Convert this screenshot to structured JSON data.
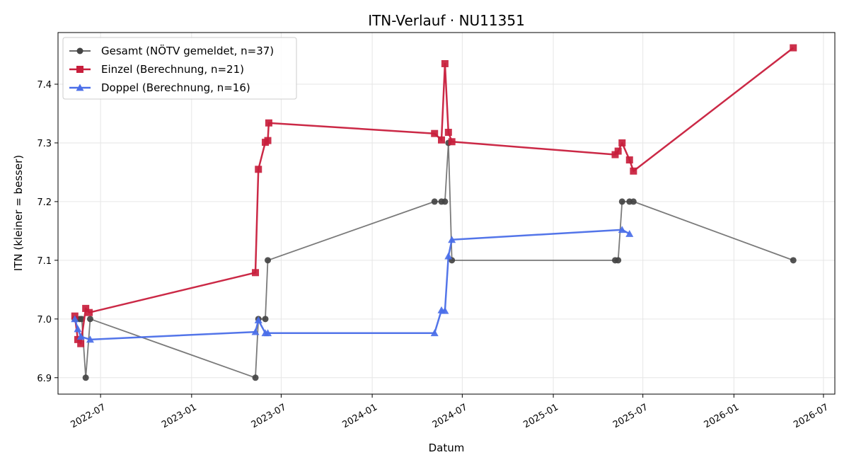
{
  "chart_data": {
    "type": "line",
    "title": "ITN-Verlauf · NU11351",
    "xlabel": "Datum",
    "ylabel": "ITN  (kleiner = besser)",
    "xlim": [
      "2022-04-06",
      "2026-07-24"
    ],
    "ylim": [
      6.872,
      7.488
    ],
    "x_ticks": [
      "2022-07",
      "2023-01",
      "2023-07",
      "2024-01",
      "2024-07",
      "2025-01",
      "2025-07",
      "2026-01",
      "2026-07"
    ],
    "y_ticks": [
      6.9,
      7.0,
      7.1,
      7.2,
      7.3,
      7.4
    ],
    "grid": true,
    "legend_position": "top-left",
    "series": [
      {
        "name": "Gesamt (NÖTV gemeldet, n=37)",
        "color": "#555555",
        "marker": "circle",
        "points": [
          [
            "2022-05-10",
            7.0
          ],
          [
            "2022-05-14",
            7.0
          ],
          [
            "2022-05-20",
            7.0
          ],
          [
            "2022-05-24",
            7.0
          ],
          [
            "2022-06-01",
            6.9
          ],
          [
            "2022-06-10",
            7.0
          ],
          [
            "2023-05-10",
            6.9
          ],
          [
            "2023-05-16",
            7.0
          ],
          [
            "2023-05-30",
            7.0
          ],
          [
            "2023-06-04",
            7.1
          ],
          [
            "2024-05-06",
            7.2
          ],
          [
            "2024-05-20",
            7.2
          ],
          [
            "2024-05-27",
            7.2
          ],
          [
            "2024-06-03",
            7.3
          ],
          [
            "2024-06-10",
            7.1
          ],
          [
            "2025-05-06",
            7.1
          ],
          [
            "2025-05-12",
            7.1
          ],
          [
            "2025-05-20",
            7.2
          ],
          [
            "2025-06-04",
            7.2
          ],
          [
            "2025-06-12",
            7.2
          ],
          [
            "2026-05-01",
            7.1
          ]
        ]
      },
      {
        "name": "Einzel (Berechnung, n=21)",
        "color": "#c81e3c",
        "marker": "square",
        "points": [
          [
            "2022-05-10",
            7.005
          ],
          [
            "2022-05-16",
            6.965
          ],
          [
            "2022-05-22",
            6.958
          ],
          [
            "2022-06-01",
            7.018
          ],
          [
            "2022-06-08",
            7.011
          ],
          [
            "2023-05-10",
            7.079
          ],
          [
            "2023-05-16",
            7.255
          ],
          [
            "2023-05-30",
            7.301
          ],
          [
            "2023-06-04",
            7.304
          ],
          [
            "2023-06-06",
            7.334
          ],
          [
            "2024-05-06",
            7.316
          ],
          [
            "2024-05-20",
            7.305
          ],
          [
            "2024-05-27",
            7.435
          ],
          [
            "2024-06-03",
            7.318
          ],
          [
            "2024-06-10",
            7.302
          ],
          [
            "2025-05-06",
            7.28
          ],
          [
            "2025-05-12",
            7.286
          ],
          [
            "2025-05-20",
            7.3
          ],
          [
            "2025-06-04",
            7.271
          ],
          [
            "2025-06-12",
            7.252
          ],
          [
            "2026-05-01",
            7.462
          ]
        ]
      },
      {
        "name": "Doppel (Berechnung, n=16)",
        "color": "#4a6ee8",
        "marker": "triangle",
        "points": [
          [
            "2022-05-10",
            7.0
          ],
          [
            "2022-05-16",
            6.983
          ],
          [
            "2022-05-22",
            6.97
          ],
          [
            "2022-06-10",
            6.965
          ],
          [
            "2023-05-10",
            6.978
          ],
          [
            "2023-05-16",
            6.998
          ],
          [
            "2023-05-30",
            6.976
          ],
          [
            "2023-06-04",
            6.976
          ],
          [
            "2024-05-06",
            6.976
          ],
          [
            "2024-05-20",
            7.015
          ],
          [
            "2024-05-27",
            7.014
          ],
          [
            "2024-06-03",
            7.107
          ],
          [
            "2024-06-10",
            7.135
          ],
          [
            "2025-05-20",
            7.152
          ],
          [
            "2025-06-04",
            7.145
          ]
        ]
      }
    ]
  }
}
